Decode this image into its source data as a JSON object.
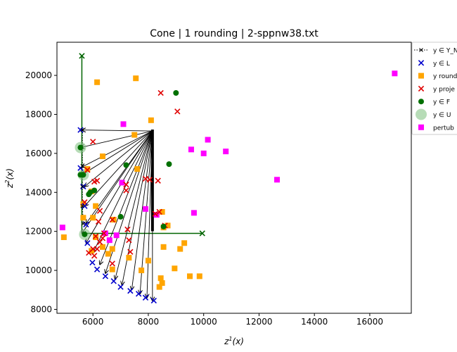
{
  "chart_data": {
    "type": "scatter",
    "title": "Cone | 1 rounding | 2-sppnw38.txt",
    "xlabel": "z^1(x)",
    "ylabel": "z^2(x)",
    "xlim": [
      4700,
      17500
    ],
    "ylim": [
      7800,
      21700
    ],
    "xticks": [
      6000,
      8000,
      10000,
      12000,
      14000,
      16000
    ],
    "yticks": [
      8000,
      10000,
      12000,
      14000,
      16000,
      18000,
      20000
    ],
    "legend_position": "upper-right",
    "legend_labels": [
      "y ∈ Y_N",
      "y ∈ L",
      "y round",
      "y proje",
      "y ∈ F",
      "y ∈ U",
      "pertub"
    ],
    "colors": {
      "L": "#0000cc",
      "round": "#ffa500",
      "proj": "#e00000",
      "F": "#007000",
      "U": "#7cc07c",
      "pertub": "#ff00ff",
      "cone": "#006400",
      "arrow": "#000000"
    },
    "cone": {
      "apex": [
        5600,
        11900
      ],
      "ray_up_end": [
        5600,
        21000
      ],
      "ray_right_end": [
        9950,
        11900
      ]
    },
    "arrows": {
      "origin": [
        8150,
        17150
      ],
      "targets": [
        [
          5600,
          17200
        ],
        [
          5550,
          16300
        ],
        [
          5600,
          15300
        ],
        [
          5600,
          14900
        ],
        [
          5700,
          14300
        ],
        [
          5700,
          13300
        ],
        [
          5750,
          12400
        ],
        [
          5600,
          11900
        ],
        [
          5750,
          11400
        ],
        [
          6000,
          10900
        ],
        [
          6250,
          10300
        ],
        [
          6450,
          9850
        ],
        [
          6800,
          9550
        ],
        [
          7050,
          9250
        ],
        [
          7400,
          9000
        ],
        [
          7700,
          8800
        ],
        [
          7950,
          8600
        ],
        [
          8150,
          8450
        ]
      ]
    },
    "series": [
      {
        "name": "y ∈ Y_N",
        "points": [
          [
            5620,
            17200
          ],
          [
            5620,
            15350
          ],
          [
            5620,
            14300
          ],
          [
            5620,
            13300
          ],
          [
            5650,
            12400
          ]
        ]
      },
      {
        "name": "y ∈ L",
        "points": [
          [
            5550,
            17200
          ],
          [
            5550,
            15250
          ],
          [
            5650,
            14300
          ],
          [
            5700,
            13300
          ],
          [
            5750,
            12350
          ],
          [
            5800,
            11400
          ],
          [
            5980,
            10400
          ],
          [
            6150,
            10050
          ],
          [
            6450,
            9700
          ],
          [
            6750,
            9450
          ],
          [
            7000,
            9150
          ],
          [
            7350,
            8950
          ],
          [
            7650,
            8800
          ],
          [
            7900,
            8600
          ],
          [
            8200,
            8450
          ]
        ]
      },
      {
        "name": "y round",
        "points": [
          [
            4950,
            11700
          ],
          [
            6150,
            19650
          ],
          [
            7550,
            19850
          ],
          [
            8100,
            17700
          ],
          [
            7500,
            16950
          ],
          [
            6350,
            15850
          ],
          [
            5800,
            15200
          ],
          [
            7600,
            15200
          ],
          [
            5950,
            14050
          ],
          [
            6100,
            13300
          ],
          [
            5650,
            13400
          ],
          [
            5650,
            12700
          ],
          [
            6000,
            12700
          ],
          [
            6750,
            12600
          ],
          [
            8500,
            13000
          ],
          [
            8550,
            12200
          ],
          [
            6100,
            11700
          ],
          [
            5950,
            11000
          ],
          [
            6350,
            11200
          ],
          [
            6700,
            11100
          ],
          [
            6550,
            10850
          ],
          [
            7300,
            10650
          ],
          [
            7750,
            10000
          ],
          [
            8000,
            10500
          ],
          [
            8550,
            11200
          ],
          [
            9150,
            11100
          ],
          [
            9300,
            11400
          ],
          [
            8950,
            10100
          ],
          [
            9500,
            9700
          ],
          [
            9850,
            9700
          ],
          [
            8450,
            9600
          ],
          [
            8500,
            9350
          ],
          [
            8400,
            9150
          ],
          [
            6700,
            10050
          ],
          [
            8700,
            12300
          ]
        ]
      },
      {
        "name": "y proje",
        "points": [
          [
            8450,
            19100
          ],
          [
            9050,
            18150
          ],
          [
            6000,
            16600
          ],
          [
            5800,
            15150
          ],
          [
            6150,
            14600
          ],
          [
            6050,
            14550
          ],
          [
            7200,
            14400
          ],
          [
            7200,
            14100
          ],
          [
            7900,
            14700
          ],
          [
            8050,
            14650
          ],
          [
            8350,
            14600
          ],
          [
            5700,
            13500
          ],
          [
            6250,
            13050
          ],
          [
            8400,
            13000
          ],
          [
            6200,
            12500
          ],
          [
            6700,
            12600
          ],
          [
            7250,
            12100
          ],
          [
            7300,
            11550
          ],
          [
            6100,
            11750
          ],
          [
            6250,
            11450
          ],
          [
            6350,
            11650
          ],
          [
            6000,
            11100
          ],
          [
            6150,
            11100
          ],
          [
            5850,
            10900
          ],
          [
            7350,
            10950
          ],
          [
            6700,
            10350
          ],
          [
            8600,
            12300
          ],
          [
            8250,
            12900
          ],
          [
            6050,
            10750
          ],
          [
            6400,
            11900
          ]
        ]
      },
      {
        "name": "y ∈ F",
        "points": [
          [
            9000,
            19100
          ],
          [
            5550,
            16300
          ],
          [
            5550,
            14900
          ],
          [
            5650,
            14900
          ],
          [
            5900,
            14000
          ],
          [
            5850,
            13900
          ],
          [
            6050,
            14100
          ],
          [
            7200,
            15400
          ],
          [
            8750,
            15450
          ],
          [
            7000,
            12750
          ],
          [
            8550,
            12250
          ],
          [
            5700,
            11850
          ]
        ]
      },
      {
        "name": "y ∈ U",
        "points": [
          [
            5550,
            16300
          ],
          [
            5650,
            14900
          ],
          [
            5700,
            11850
          ]
        ]
      },
      {
        "name": "pertub",
        "points": [
          [
            16900,
            20100
          ],
          [
            12650,
            14650
          ],
          [
            10150,
            16700
          ],
          [
            9550,
            16200
          ],
          [
            10000,
            16000
          ],
          [
            10800,
            16100
          ],
          [
            9650,
            12950
          ],
          [
            7100,
            17500
          ],
          [
            7900,
            13150
          ],
          [
            8300,
            12850
          ],
          [
            6450,
            11900
          ],
          [
            6600,
            11550
          ],
          [
            6850,
            11800
          ],
          [
            4900,
            12200
          ],
          [
            7050,
            14500
          ]
        ]
      }
    ]
  }
}
